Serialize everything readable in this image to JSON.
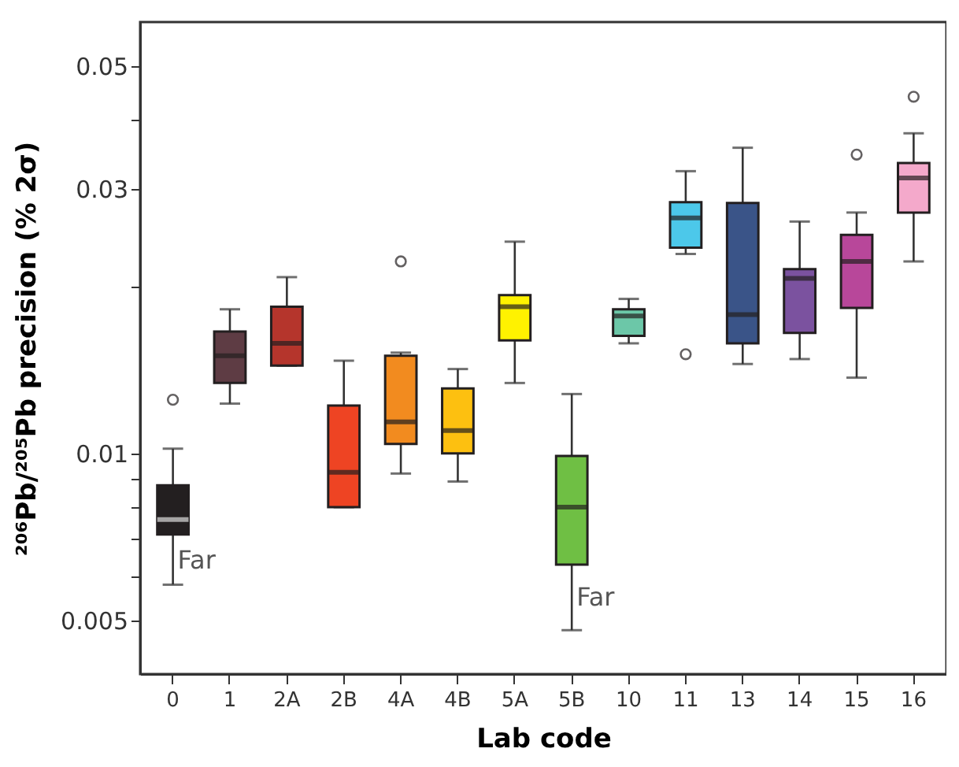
{
  "chart_data": {
    "type": "box",
    "xlabel": "Lab code",
    "ylabel": "²⁰⁶Pb/²⁰⁵Pb precision (% 2σ)",
    "categories": [
      "0",
      "1",
      "2A",
      "2B",
      "4A",
      "4B",
      "5A",
      "5B",
      "10",
      "11",
      "13",
      "14",
      "15",
      "16"
    ],
    "colors": [
      "#231f20",
      "#5e3c44",
      "#b5352c",
      "#ee4423",
      "#f28b1f",
      "#fdc010",
      "#fff200",
      "#6fbf44",
      "#6cc7a8",
      "#4cc8ea",
      "#3a5488",
      "#7b529f",
      "#b8479a",
      "#f4a9cb"
    ],
    "boxes": [
      {
        "low": 0.0058,
        "q1": 0.00714,
        "median": 0.0076,
        "q3": 0.00876,
        "high": 0.0102,
        "outliers": [
          0.0125
        ]
      },
      {
        "low": 0.0123,
        "q1": 0.0134,
        "median": 0.015,
        "q3": 0.0166,
        "high": 0.0182
      },
      {
        "low": 0.0144,
        "q1": 0.0144,
        "median": 0.0158,
        "q3": 0.0184,
        "high": 0.0208
      },
      {
        "low": 0.008,
        "q1": 0.008,
        "median": 0.00925,
        "q3": 0.0122,
        "high": 0.0147
      },
      {
        "low": 0.0092,
        "q1": 0.0104,
        "median": 0.0114,
        "q3": 0.015,
        "high": 0.0152,
        "outliers": [
          0.0222
        ]
      },
      {
        "low": 0.0089,
        "q1": 0.01,
        "median": 0.011,
        "q3": 0.0131,
        "high": 0.0142
      },
      {
        "low": 0.0134,
        "q1": 0.016,
        "median": 0.0184,
        "q3": 0.0193,
        "high": 0.0241
      },
      {
        "low": 0.0048,
        "q1": 0.0063,
        "median": 0.008,
        "q3": 0.0099,
        "high": 0.0128
      },
      {
        "low": 0.0158,
        "q1": 0.0163,
        "median": 0.0177,
        "q3": 0.0182,
        "high": 0.019
      },
      {
        "low": 0.0229,
        "q1": 0.0235,
        "median": 0.0266,
        "q3": 0.0284,
        "high": 0.0323,
        "outliers": [
          0.0151
        ]
      },
      {
        "low": 0.0145,
        "q1": 0.0158,
        "median": 0.0178,
        "q3": 0.0283,
        "high": 0.0356
      },
      {
        "low": 0.0148,
        "q1": 0.0165,
        "median": 0.0207,
        "q3": 0.0215,
        "high": 0.0262
      },
      {
        "low": 0.0137,
        "q1": 0.0183,
        "median": 0.0222,
        "q3": 0.0248,
        "high": 0.0272,
        "outliers": [
          0.0346
        ]
      },
      {
        "low": 0.0222,
        "q1": 0.0272,
        "median": 0.0314,
        "q3": 0.0334,
        "high": 0.0378,
        "outliers": [
          0.044
        ]
      }
    ],
    "log": true,
    "ylim": [
      0.004,
      0.06
    ],
    "yticks": [
      0.005,
      {
        "value": 0.006,
        "label": null
      },
      {
        "value": 0.007,
        "label": null
      },
      {
        "value": 0.008,
        "label": null
      },
      {
        "value": 0.009,
        "label": null
      },
      0.01,
      {
        "value": 0.02,
        "label": null
      },
      0.03,
      {
        "value": 0.04,
        "label": null
      },
      0.05
    ],
    "annotations": [
      {
        "text": "Far",
        "x": "0",
        "y": 0.0064
      },
      {
        "text": "Far",
        "x": "5B",
        "y": 0.0055
      }
    ],
    "grid": false
  }
}
